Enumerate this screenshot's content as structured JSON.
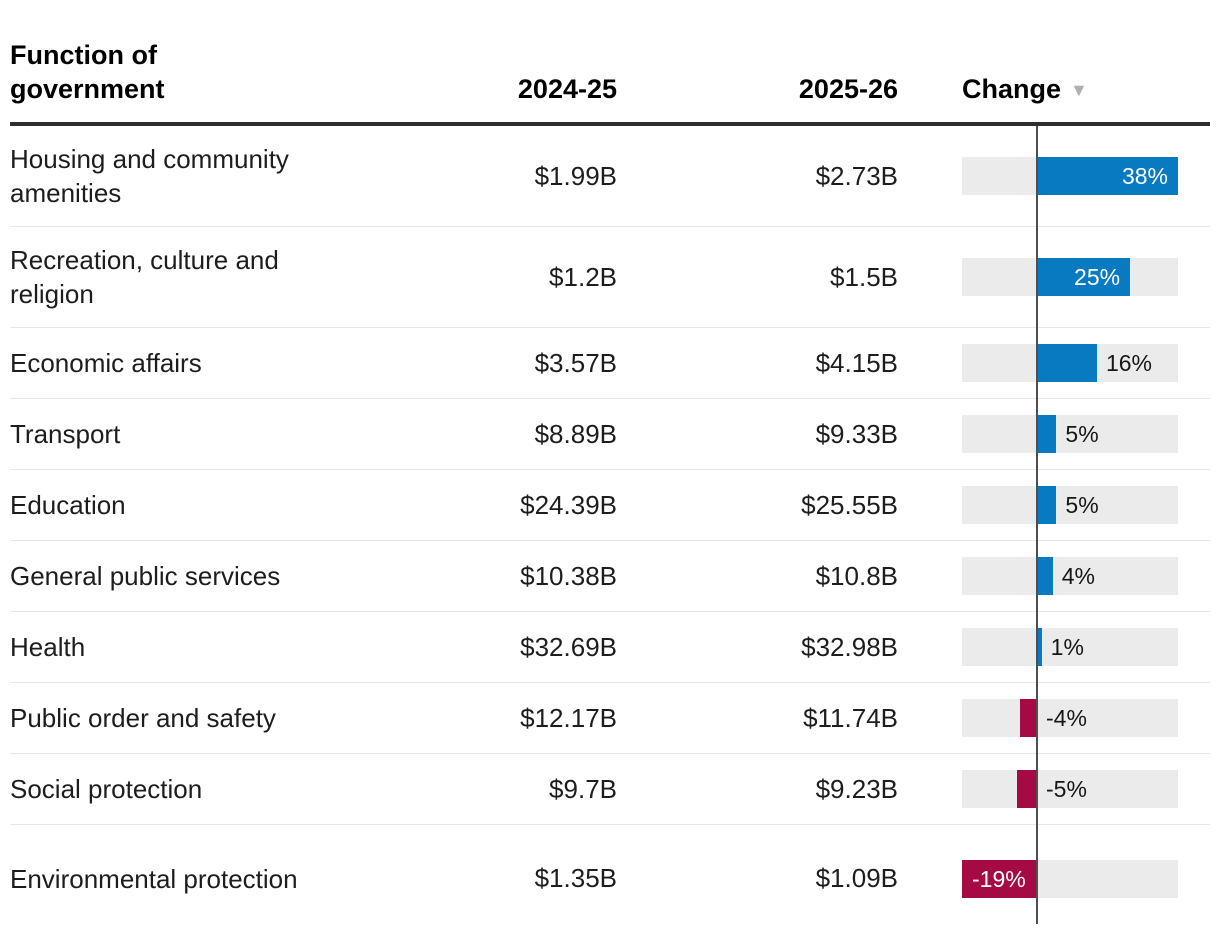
{
  "header": {
    "function_label": "Function of government",
    "col_2024": "2024-25",
    "col_2025": "2025-26",
    "col_change": "Change",
    "sort_icon": "▼"
  },
  "colors": {
    "positive_bar": "#087ac1",
    "negative_bar": "#a60a45",
    "track": "#ebebeb",
    "zero_line": "#4f4f4f"
  },
  "axis": {
    "positive_max": 38,
    "negative_max": 19
  },
  "rows": [
    {
      "label": "Housing and community amenities",
      "y2024": "$1.99B",
      "y2025": "$2.73B",
      "change_pct": 38,
      "change_label": "38%"
    },
    {
      "label": "Recreation, culture and religion",
      "y2024": "$1.2B",
      "y2025": "$1.5B",
      "change_pct": 25,
      "change_label": "25%"
    },
    {
      "label": "Economic affairs",
      "y2024": "$3.57B",
      "y2025": "$4.15B",
      "change_pct": 16,
      "change_label": "16%"
    },
    {
      "label": "Transport",
      "y2024": "$8.89B",
      "y2025": "$9.33B",
      "change_pct": 5,
      "change_label": "5%"
    },
    {
      "label": "Education",
      "y2024": "$24.39B",
      "y2025": "$25.55B",
      "change_pct": 5,
      "change_label": "5%"
    },
    {
      "label": "General public services",
      "y2024": "$10.38B",
      "y2025": "$10.8B",
      "change_pct": 4,
      "change_label": "4%"
    },
    {
      "label": "Health",
      "y2024": "$32.69B",
      "y2025": "$32.98B",
      "change_pct": 1,
      "change_label": "1%"
    },
    {
      "label": "Public order and safety",
      "y2024": "$12.17B",
      "y2025": "$11.74B",
      "change_pct": -4,
      "change_label": "-4%"
    },
    {
      "label": "Social protection",
      "y2024": "$9.7B",
      "y2025": "$9.23B",
      "change_pct": -5,
      "change_label": "-5%"
    },
    {
      "label": "Environmental protection",
      "y2024": "$1.35B",
      "y2025": "$1.09B",
      "change_pct": -19,
      "change_label": "-19%"
    }
  ],
  "chart_data": {
    "type": "bar",
    "orientation": "horizontal",
    "title": "",
    "categories": [
      "Housing and community amenities",
      "Recreation, culture and religion",
      "Economic affairs",
      "Transport",
      "Education",
      "General public services",
      "Health",
      "Public order and safety",
      "Social protection",
      "Environmental protection"
    ],
    "series": [
      {
        "name": "2024-25 ($B)",
        "values": [
          1.99,
          1.2,
          3.57,
          8.89,
          24.39,
          10.38,
          32.69,
          12.17,
          9.7,
          1.35
        ]
      },
      {
        "name": "2025-26 ($B)",
        "values": [
          2.73,
          1.5,
          4.15,
          9.33,
          25.55,
          10.8,
          32.98,
          11.74,
          9.23,
          1.09
        ]
      },
      {
        "name": "Change (%)",
        "values": [
          38,
          25,
          16,
          5,
          5,
          4,
          1,
          -4,
          -5,
          -19
        ]
      }
    ],
    "xlim": [
      -19,
      38
    ],
    "grid": false,
    "legend": "none",
    "sort": "Change descending",
    "positive_color": "#087ac1",
    "negative_color": "#a60a45"
  }
}
